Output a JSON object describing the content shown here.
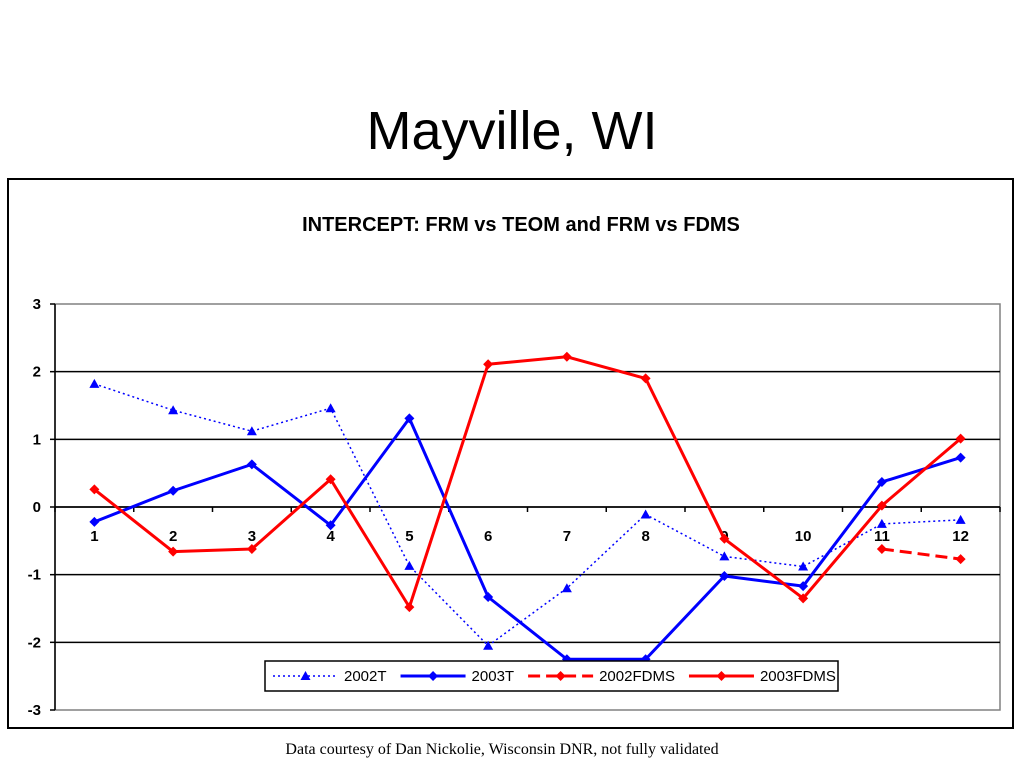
{
  "slide": {
    "title": "Mayville, WI",
    "footer": "Data courtesy of Dan Nickolie, Wisconsin DNR, not fully validated"
  },
  "chart_data": {
    "type": "line",
    "title": "INTERCEPT: FRM vs TEOM and FRM vs FDMS",
    "xlabel": "",
    "ylabel": "",
    "x": [
      1,
      2,
      3,
      4,
      5,
      6,
      7,
      8,
      9,
      10,
      11,
      12
    ],
    "x_tick_labels": [
      "1",
      "2",
      "3",
      "4",
      "5",
      "6",
      "7",
      "8",
      "9",
      "10",
      "11",
      "12"
    ],
    "ylim": [
      -3,
      3
    ],
    "y_ticks": [
      3,
      2,
      1,
      0,
      -1,
      -2,
      -3
    ],
    "grid": "horizontal",
    "legend_position": "bottom",
    "series": [
      {
        "name": "2002T",
        "color": "#0000ff",
        "line": "dotted",
        "marker": "triangle",
        "values": [
          1.82,
          1.43,
          1.12,
          1.46,
          -0.87,
          -2.05,
          -1.2,
          -0.11,
          -0.73,
          -0.88,
          -0.25,
          -0.19
        ]
      },
      {
        "name": "2003T",
        "color": "#0000ff",
        "line": "solid",
        "marker": "diamond",
        "values": [
          -0.22,
          0.24,
          0.63,
          -0.27,
          1.31,
          -1.33,
          -2.25,
          -2.25,
          -1.02,
          -1.17,
          0.37,
          0.73
        ]
      },
      {
        "name": "2002FDMS",
        "color": "#ff0000",
        "line": "dashed",
        "marker": "diamond",
        "values": [
          null,
          null,
          null,
          null,
          null,
          null,
          null,
          null,
          null,
          null,
          -0.62,
          -0.77
        ]
      },
      {
        "name": "2003FDMS",
        "color": "#ff0000",
        "line": "solid",
        "marker": "diamond",
        "values": [
          0.26,
          -0.66,
          -0.62,
          0.41,
          -1.48,
          2.11,
          2.22,
          1.9,
          -0.47,
          -1.35,
          0.02,
          1.01
        ]
      }
    ]
  }
}
